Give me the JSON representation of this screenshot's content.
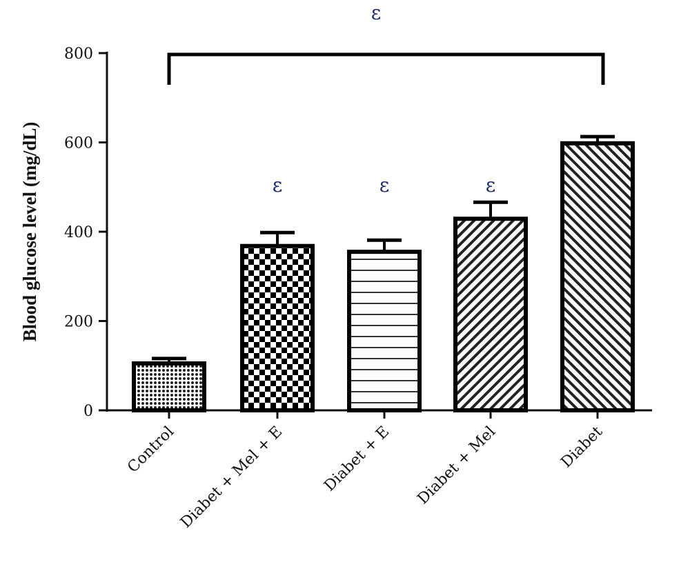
{
  "chart_data": {
    "type": "bar",
    "title": "",
    "xlabel": "",
    "ylabel": "Blood glucose level (mg/dL)",
    "ylim": [
      0,
      800
    ],
    "yticks": [
      0,
      200,
      400,
      600,
      800
    ],
    "categories": [
      "Control",
      "Diabet + Mel + E",
      "Diabet + E",
      "Diabet + Mel",
      "Diabet"
    ],
    "values": [
      105,
      368,
      355,
      429,
      598
    ],
    "error_upper": [
      116,
      398,
      381,
      466,
      613
    ],
    "patterns": [
      "fine-dots",
      "checkerboard",
      "horizontal-lines",
      "diagonal-up",
      "diagonal-down"
    ],
    "bar_annotations": [
      "",
      "ε",
      "ε",
      "ε",
      ""
    ],
    "bracket": {
      "from": "Control",
      "to": "Diabet",
      "label": "ε"
    },
    "grid": false,
    "legend": "none",
    "colors": {
      "bars": "#000000",
      "annotation": "#1a2a6a"
    }
  }
}
